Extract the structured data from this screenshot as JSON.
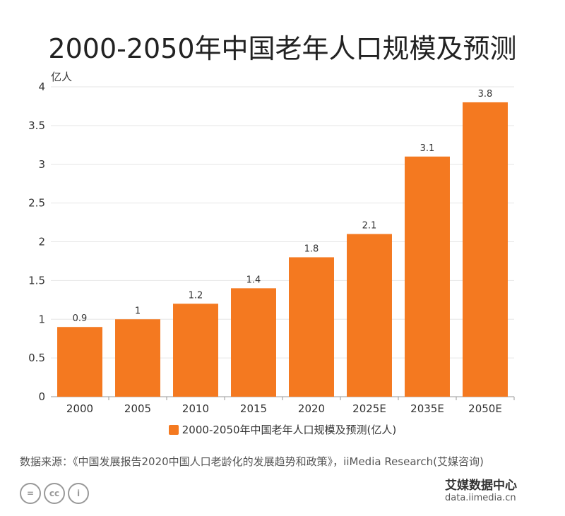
{
  "chart_data": {
    "type": "bar",
    "title": "2000-2050年中国老年人口规模及预测",
    "ylabel": "亿人",
    "categories": [
      "2000",
      "2005",
      "2010",
      "2015",
      "2020",
      "2025E",
      "2035E",
      "2050E"
    ],
    "series": [
      {
        "name": "2000-2050年中国老年人口规模及预测(亿人)",
        "values": [
          0.9,
          1,
          1.2,
          1.4,
          1.8,
          2.1,
          3.1,
          3.8
        ]
      }
    ],
    "data_labels": [
      "0.9",
      "1",
      "1.2",
      "1.4",
      "1.8",
      "2.1",
      "3.1",
      "3.8"
    ],
    "ylim": [
      0,
      4
    ],
    "yticks": [
      "0",
      "0.5",
      "1",
      "1.5",
      "2",
      "2.5",
      "3",
      "3.5",
      "4"
    ],
    "grid": true,
    "legend": "bottom",
    "color": "#F47920"
  },
  "source": "数据来源：《中国发展报告2020中国人口老龄化的发展趋势和政策》，iiMedia Research(艾媒咨询)",
  "license_icons": [
    "equals-icon",
    "cc-icon",
    "person-icon"
  ],
  "logo": {
    "name": "艾媒数据中心",
    "url": "data.iimedia.cn"
  }
}
